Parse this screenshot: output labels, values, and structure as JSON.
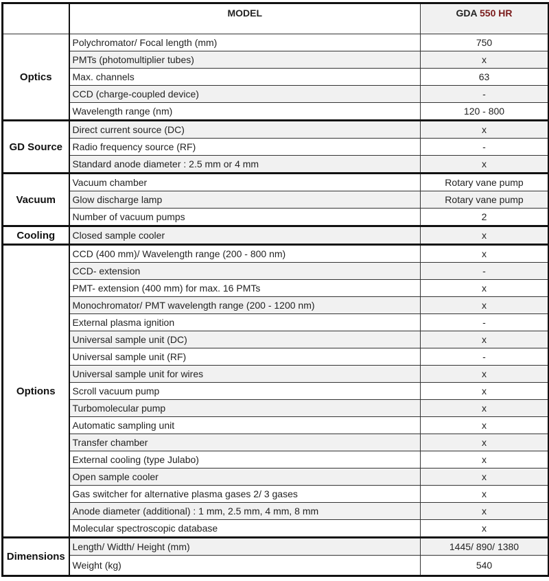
{
  "header": {
    "model_label": "MODEL",
    "product_prefix": "GDA",
    "product_number": "550 HR",
    "product_number_color": "#7a1a1a"
  },
  "groups": [
    {
      "name": "Optics",
      "rows": [
        {
          "item": "Polychromator/ Focal length (mm)",
          "value": "750"
        },
        {
          "item": "PMTs (photomultiplier tubes)",
          "value": "x"
        },
        {
          "item": "Max. channels",
          "value": "63"
        },
        {
          "item": "CCD (charge-coupled device)",
          "value": "-"
        },
        {
          "item": "Wavelength range (nm)",
          "value": "120 -  800"
        }
      ]
    },
    {
      "name": "GD Source",
      "rows": [
        {
          "item": "Direct current source (DC)",
          "value": "x"
        },
        {
          "item": "Radio frequency source (RF)",
          "value": "-"
        },
        {
          "item": "Standard anode diameter : 2.5 mm or 4 mm",
          "value": "x"
        }
      ]
    },
    {
      "name": "Vacuum",
      "rows": [
        {
          "item": "Vacuum chamber",
          "value": "Rotary vane pump"
        },
        {
          "item": "Glow discharge lamp",
          "value": "Rotary vane pump"
        },
        {
          "item": "Number of vacuum pumps",
          "value": "2"
        }
      ]
    },
    {
      "name": "Cooling",
      "rows": [
        {
          "item": "Closed sample cooler",
          "value": "x"
        }
      ]
    },
    {
      "name": "Options",
      "rows": [
        {
          "item": "CCD (400 mm)/ Wavelength range  (200 - 800 nm)",
          "value": "x"
        },
        {
          "item": "CCD- extension",
          "value": "-"
        },
        {
          "item": "PMT- extension (400 mm) for max. 16 PMTs",
          "value": "x"
        },
        {
          "item": "Monochromator/ PMT wavelength range (200 - 1200 nm)",
          "value": "x"
        },
        {
          "item": "External plasma ignition",
          "value": "-"
        },
        {
          "item": "Universal sample unit (DC)",
          "value": "x"
        },
        {
          "item": "Universal sample unit  (RF)",
          "value": "-"
        },
        {
          "item": "Universal sample unit for wires",
          "value": "x"
        },
        {
          "item": "Scroll vacuum pump",
          "value": "x"
        },
        {
          "item": "Turbomolecular pump",
          "value": "x"
        },
        {
          "item": "Automatic sampling unit",
          "value": "x"
        },
        {
          "item": "Transfer chamber",
          "value": "x"
        },
        {
          "item": "External cooling (type Julabo)",
          "value": "x"
        },
        {
          "item": "Open sample cooler",
          "value": "x"
        },
        {
          "item": "Gas switcher for alternative plasma gases 2/ 3 gases",
          "value": "x"
        },
        {
          "item": "Anode diameter (additional) : 1 mm, 2.5 mm, 4 mm, 8 mm",
          "value": "x"
        },
        {
          "item": "Molecular spectroscopic database",
          "value": "x"
        }
      ]
    },
    {
      "name": "Dimensions",
      "rows": [
        {
          "item": "Length/ Width/ Height (mm)",
          "value": "1445/ 890/ 1380"
        },
        {
          "item": "Weight (kg)",
          "value": "540"
        }
      ]
    }
  ]
}
